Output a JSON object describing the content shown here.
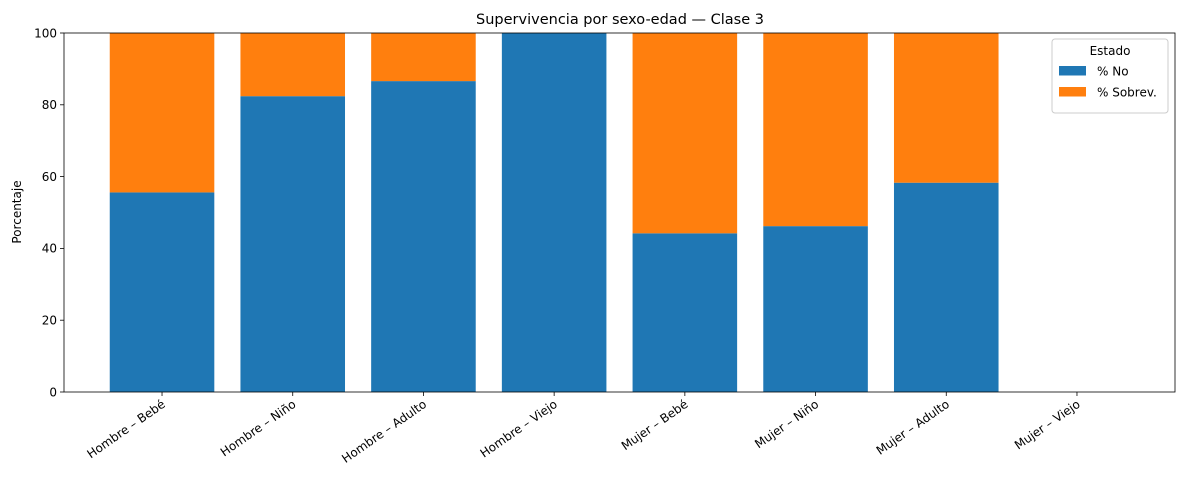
{
  "chart_data": {
    "type": "bar",
    "stacked": true,
    "title": "Supervivencia por sexo-edad  — Clase 3",
    "xlabel": "",
    "ylabel": "Porcentaje",
    "ylim": [
      0,
      100
    ],
    "yticks": [
      0,
      20,
      40,
      60,
      80,
      100
    ],
    "grid": false,
    "categories": [
      "Hombre – Bebé",
      "Hombre – Niño",
      "Hombre – Adulto",
      "Hombre – Viejo",
      "Mujer – Bebé",
      "Mujer – Niño",
      "Mujer – Adulto",
      "Mujer – Viejo"
    ],
    "series": [
      {
        "name": "% No",
        "color": "#1f77b4",
        "values": [
          55.6,
          82.4,
          86.6,
          100,
          44.2,
          46.2,
          58.3,
          0
        ]
      },
      {
        "name": "% Sobrev.",
        "color": "#ff7f0e",
        "values": [
          44.4,
          17.6,
          13.4,
          0,
          55.8,
          53.8,
          41.7,
          0
        ]
      }
    ],
    "legend": {
      "title": "Estado",
      "placement": "top-right"
    }
  }
}
